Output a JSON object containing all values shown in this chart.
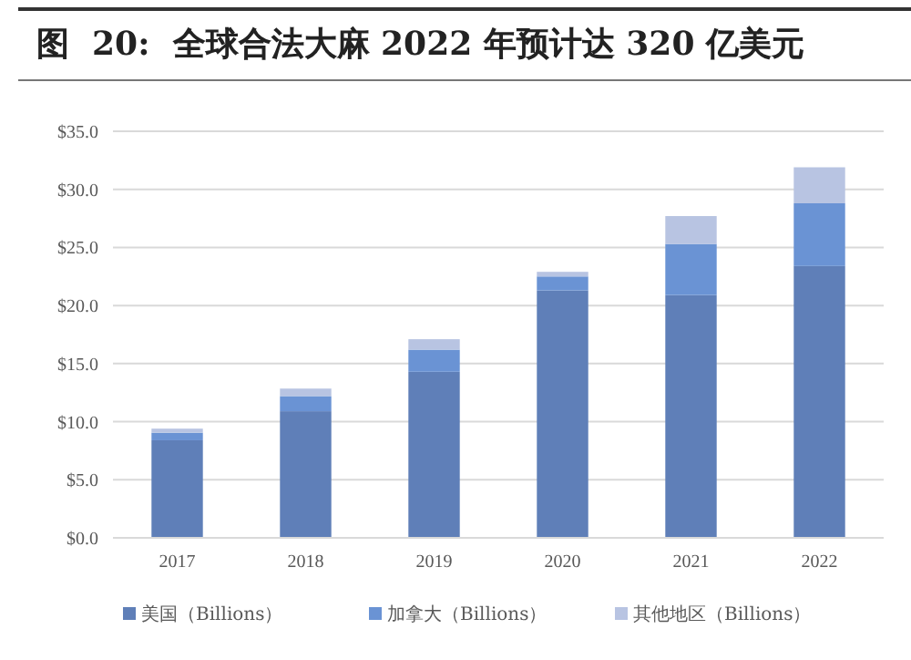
{
  "chart_data": {
    "type": "bar",
    "title": "图  20:  全球合法大麻 2022 年预计达 320 亿美元",
    "categories": [
      "2017",
      "2018",
      "2019",
      "2020",
      "2021",
      "2022"
    ],
    "stacked": true,
    "series": [
      {
        "name": "美国（Billions）",
        "color": "#5f7fb8",
        "values": [
          8.4,
          10.9,
          14.3,
          21.3,
          20.9,
          23.4
        ]
      },
      {
        "name": "加拿大（Billions）",
        "color": "#6a93d4",
        "values": [
          0.65,
          1.3,
          1.9,
          1.2,
          4.4,
          5.4
        ]
      },
      {
        "name": "其他地区（Billions）",
        "color": "#b8c4e2",
        "values": [
          0.35,
          0.65,
          0.9,
          0.4,
          2.4,
          3.1
        ]
      }
    ],
    "ylim": [
      0,
      35
    ],
    "yticks": [
      {
        "value": 0,
        "label": "$0.0"
      },
      {
        "value": 5,
        "label": "$5.0"
      },
      {
        "value": 10,
        "label": "$10.0"
      },
      {
        "value": 15,
        "label": "$15.0"
      },
      {
        "value": 20,
        "label": "$20.0"
      },
      {
        "value": 25,
        "label": "$25.0"
      },
      {
        "value": 30,
        "label": "$30.0"
      },
      {
        "value": 35,
        "label": "$35.0"
      }
    ],
    "grid": "y",
    "legend": "bottom"
  }
}
